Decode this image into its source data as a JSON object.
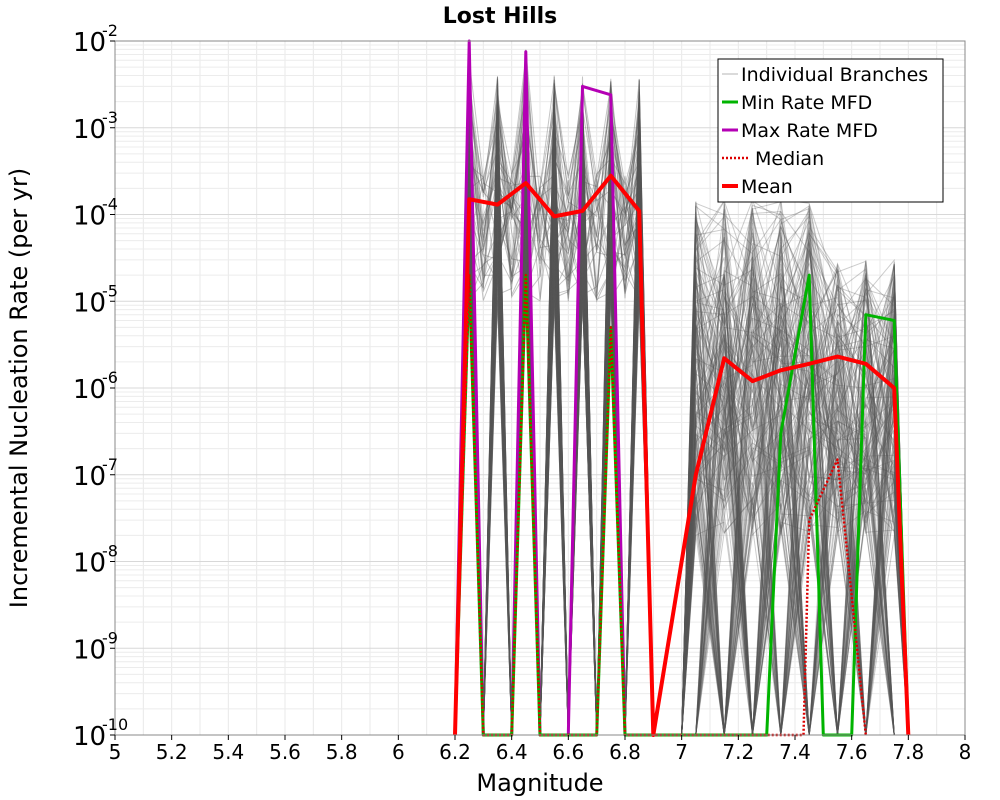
{
  "chart_data": {
    "type": "line",
    "title": "Lost Hills",
    "xlabel": "Magnitude",
    "ylabel": "Incremental Nucleation Rate (per yr)",
    "log_y": true,
    "xlim": [
      5,
      8
    ],
    "ylim": [
      1e-10,
      0.01
    ],
    "x_ticks": [
      "5",
      "5.2",
      "5.4",
      "5.6",
      "5.8",
      "6",
      "6.2",
      "6.4",
      "6.6",
      "6.8",
      "7",
      "7.2",
      "7.4",
      "7.6",
      "7.8",
      "8"
    ],
    "y_ticks": [
      {
        "base": "10",
        "exp": "-10"
      },
      {
        "base": "10",
        "exp": "-9"
      },
      {
        "base": "10",
        "exp": "-8"
      },
      {
        "base": "10",
        "exp": "-7"
      },
      {
        "base": "10",
        "exp": "-6"
      },
      {
        "base": "10",
        "exp": "-5"
      },
      {
        "base": "10",
        "exp": "-4"
      },
      {
        "base": "10",
        "exp": "-3"
      },
      {
        "base": "10",
        "exp": "-2"
      }
    ],
    "grid": true,
    "legend_position": "top-right",
    "legend": [
      {
        "label": "Individual Branches",
        "color": "#b4b4b4",
        "style": "thin"
      },
      {
        "label": "Min Rate MFD",
        "color": "#00b400",
        "style": "solid"
      },
      {
        "label": "Max Rate MFD",
        "color": "#b400b4",
        "style": "solid"
      },
      {
        "label": "Median",
        "color": "#dd0000",
        "style": "dotted"
      },
      {
        "label": "Mean",
        "color": "#ff0000",
        "style": "thick"
      }
    ],
    "series": [
      {
        "name": "Mean",
        "color": "#ff0000",
        "style": "thick",
        "points": [
          [
            6.2,
            1e-10
          ],
          [
            6.25,
            0.00015
          ],
          [
            6.35,
            0.00013
          ],
          [
            6.45,
            0.00023
          ],
          [
            6.55,
            9.5e-05
          ],
          [
            6.65,
            0.00011
          ],
          [
            6.75,
            0.00028
          ],
          [
            6.85,
            0.00011
          ],
          [
            6.9,
            1e-10
          ],
          [
            7.05,
            1e-07
          ],
          [
            7.15,
            2.2e-06
          ],
          [
            7.25,
            1.2e-06
          ],
          [
            7.35,
            1.6e-06
          ],
          [
            7.45,
            1.9e-06
          ],
          [
            7.55,
            2.3e-06
          ],
          [
            7.65,
            1.9e-06
          ],
          [
            7.75,
            1e-06
          ],
          [
            7.8,
            1e-10
          ]
        ]
      },
      {
        "name": "Median",
        "color": "#dd0000",
        "style": "dotted",
        "points": [
          [
            6.2,
            1e-10
          ],
          [
            6.25,
            2e-05
          ],
          [
            6.3,
            1e-10
          ],
          [
            6.4,
            1e-10
          ],
          [
            6.45,
            2e-05
          ],
          [
            6.5,
            1e-10
          ],
          [
            6.6,
            1e-10
          ],
          [
            6.7,
            1e-10
          ],
          [
            6.75,
            5e-06
          ],
          [
            6.8,
            1e-10
          ],
          [
            7.43,
            1e-10
          ],
          [
            7.45,
            3e-08
          ],
          [
            7.55,
            1.5e-07
          ],
          [
            7.6,
            4e-09
          ],
          [
            7.65,
            1e-10
          ]
        ]
      },
      {
        "name": "Min Rate MFD",
        "color": "#00b400",
        "style": "solid",
        "points": [
          [
            6.2,
            1e-10
          ],
          [
            6.25,
            2e-05
          ],
          [
            6.3,
            1e-10
          ],
          [
            6.4,
            1e-10
          ],
          [
            6.45,
            2e-05
          ],
          [
            6.5,
            1e-10
          ],
          [
            6.7,
            1e-10
          ],
          [
            6.75,
            5e-06
          ],
          [
            6.8,
            1e-10
          ],
          [
            7.3,
            1e-10
          ],
          [
            7.35,
            3e-07
          ],
          [
            7.45,
            2e-05
          ],
          [
            7.5,
            1e-10
          ],
          [
            7.6,
            1e-10
          ],
          [
            7.65,
            7e-06
          ],
          [
            7.75,
            6e-06
          ],
          [
            7.8,
            1e-10
          ]
        ]
      },
      {
        "name": "Max Rate MFD",
        "color": "#b400b4",
        "style": "solid",
        "points": [
          [
            6.2,
            1e-10
          ],
          [
            6.25,
            0.01
          ],
          [
            6.3,
            1e-10
          ],
          [
            6.4,
            1e-10
          ],
          [
            6.45,
            0.0075
          ],
          [
            6.5,
            1e-10
          ],
          [
            6.6,
            1e-10
          ],
          [
            6.65,
            0.003
          ],
          [
            6.75,
            0.0024
          ],
          [
            6.8,
            1e-10
          ]
        ]
      }
    ]
  }
}
